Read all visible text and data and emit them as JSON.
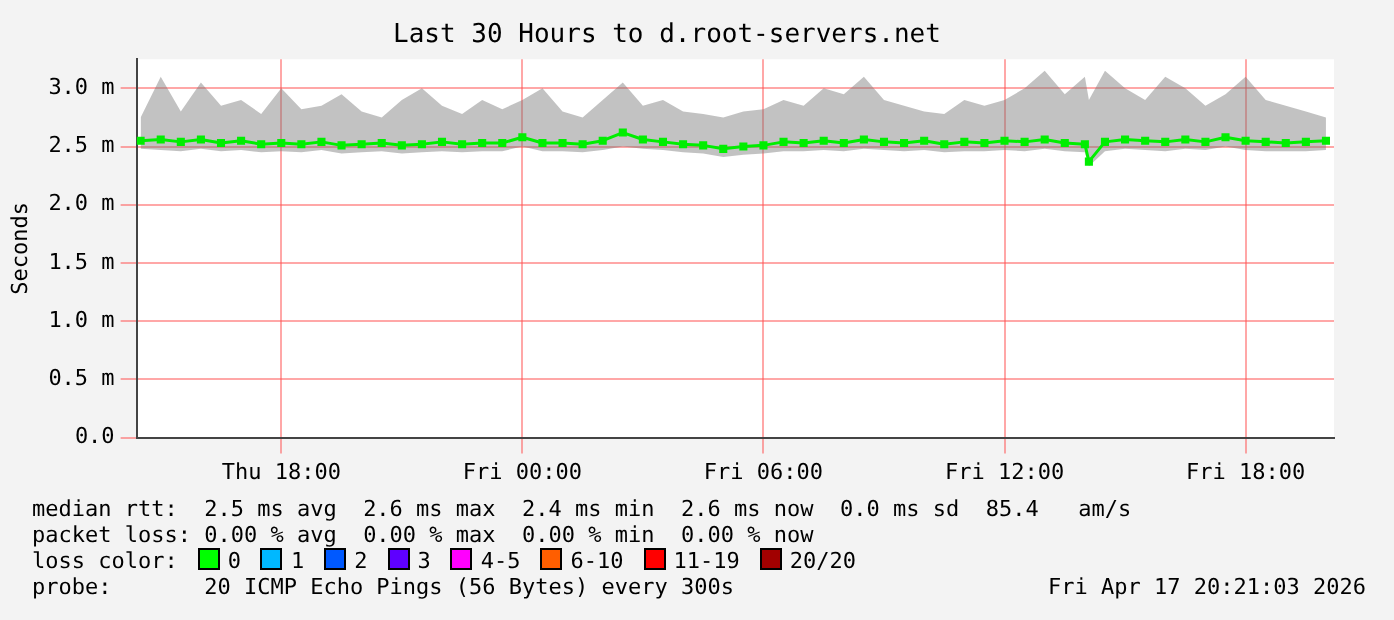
{
  "chart_data": {
    "type": "line",
    "title": "Last 30 Hours to d.root-servers.net",
    "ylabel": "Seconds",
    "x": [
      "2026-04-16T14:30",
      "2026-04-16T15:00",
      "2026-04-16T15:30",
      "2026-04-16T16:00",
      "2026-04-16T16:30",
      "2026-04-16T17:00",
      "2026-04-16T17:30",
      "2026-04-16T18:00",
      "2026-04-16T18:30",
      "2026-04-16T19:00",
      "2026-04-16T19:30",
      "2026-04-16T20:00",
      "2026-04-16T20:30",
      "2026-04-16T21:00",
      "2026-04-16T21:30",
      "2026-04-16T22:00",
      "2026-04-16T22:30",
      "2026-04-16T23:00",
      "2026-04-16T23:30",
      "2026-04-17T00:00",
      "2026-04-17T00:30",
      "2026-04-17T01:00",
      "2026-04-17T01:30",
      "2026-04-17T02:00",
      "2026-04-17T02:30",
      "2026-04-17T03:00",
      "2026-04-17T03:30",
      "2026-04-17T04:00",
      "2026-04-17T04:30",
      "2026-04-17T05:00",
      "2026-04-17T05:30",
      "2026-04-17T06:00",
      "2026-04-17T06:30",
      "2026-04-17T07:00",
      "2026-04-17T07:30",
      "2026-04-17T08:00",
      "2026-04-17T08:30",
      "2026-04-17T09:00",
      "2026-04-17T09:30",
      "2026-04-17T10:00",
      "2026-04-17T10:30",
      "2026-04-17T11:00",
      "2026-04-17T11:30",
      "2026-04-17T12:00",
      "2026-04-17T12:30",
      "2026-04-17T13:00",
      "2026-04-17T13:30",
      "2026-04-17T14:00",
      "2026-04-17T14:06",
      "2026-04-17T14:30",
      "2026-04-17T15:00",
      "2026-04-17T15:30",
      "2026-04-17T16:00",
      "2026-04-17T16:30",
      "2026-04-17T17:00",
      "2026-04-17T17:30",
      "2026-04-17T18:00",
      "2026-04-17T18:30",
      "2026-04-17T19:00",
      "2026-04-17T19:30",
      "2026-04-17T20:00"
    ],
    "series": [
      {
        "color": "#00ee00",
        "values": [
          2.55,
          2.56,
          2.54,
          2.56,
          2.53,
          2.55,
          2.52,
          2.53,
          2.52,
          2.54,
          2.51,
          2.52,
          2.53,
          2.51,
          2.52,
          2.54,
          2.52,
          2.53,
          2.53,
          2.58,
          2.53,
          2.53,
          2.52,
          2.55,
          2.62,
          2.56,
          2.54,
          2.52,
          2.51,
          2.48,
          2.5,
          2.51,
          2.54,
          2.53,
          2.55,
          2.53,
          2.56,
          2.54,
          2.53,
          2.55,
          2.52,
          2.54,
          2.53,
          2.55,
          2.54,
          2.56,
          2.53,
          2.52,
          2.37,
          2.54,
          2.56,
          2.55,
          2.54,
          2.56,
          2.54,
          2.58,
          2.55,
          2.54,
          2.53,
          2.54,
          2.55
        ],
        "lower": [
          2.48,
          2.47,
          2.46,
          2.48,
          2.46,
          2.47,
          2.45,
          2.46,
          2.45,
          2.47,
          2.44,
          2.45,
          2.46,
          2.44,
          2.45,
          2.46,
          2.45,
          2.46,
          2.46,
          2.5,
          2.46,
          2.46,
          2.45,
          2.47,
          2.5,
          2.48,
          2.47,
          2.45,
          2.44,
          2.41,
          2.43,
          2.44,
          2.46,
          2.46,
          2.47,
          2.46,
          2.48,
          2.47,
          2.46,
          2.47,
          2.45,
          2.46,
          2.46,
          2.47,
          2.46,
          2.48,
          2.46,
          2.45,
          2.33,
          2.46,
          2.48,
          2.47,
          2.46,
          2.48,
          2.47,
          2.5,
          2.47,
          2.46,
          2.46,
          2.46,
          2.47
        ],
        "upper": [
          2.75,
          3.1,
          2.8,
          3.05,
          2.85,
          2.9,
          2.78,
          3.0,
          2.82,
          2.85,
          2.95,
          2.8,
          2.75,
          2.9,
          3.0,
          2.85,
          2.78,
          2.9,
          2.82,
          2.9,
          3.0,
          2.8,
          2.75,
          2.9,
          3.05,
          2.85,
          2.9,
          2.8,
          2.78,
          2.75,
          2.8,
          2.82,
          2.9,
          2.85,
          3.0,
          2.95,
          3.1,
          2.9,
          2.85,
          2.8,
          2.78,
          2.9,
          2.85,
          2.9,
          3.0,
          3.15,
          2.95,
          3.1,
          2.9,
          3.15,
          3.0,
          2.9,
          3.1,
          3.0,
          2.85,
          2.95,
          3.1,
          2.9,
          2.85,
          2.8,
          2.75
        ]
      }
    ],
    "xlim": [
      "2026-04-16T14:24",
      "2026-04-17T20:12"
    ],
    "xticks": [
      {
        "value": "2026-04-16T18:00",
        "label": "Thu 18:00"
      },
      {
        "value": "2026-04-17T00:00",
        "label": "Fri 00:00"
      },
      {
        "value": "2026-04-17T06:00",
        "label": "Fri 06:00"
      },
      {
        "value": "2026-04-17T12:00",
        "label": "Fri 12:00"
      },
      {
        "value": "2026-04-17T18:00",
        "label": "Fri 18:00"
      }
    ],
    "ylim": [
      0,
      3.25
    ],
    "yticks": [
      {
        "value": 0,
        "label": "0.0"
      },
      {
        "value": 0.5,
        "label": "0.5 m"
      },
      {
        "value": 1.0,
        "label": "1.0 m"
      },
      {
        "value": 1.5,
        "label": "1.5 m"
      },
      {
        "value": 2.0,
        "label": "2.0 m"
      },
      {
        "value": 2.5,
        "label": "2.5 m"
      },
      {
        "value": 3.0,
        "label": "3.0 m"
      }
    ],
    "grid": true,
    "legend": false,
    "marker": "square",
    "line_style": "solid",
    "annotations": [
      "median rtt:  2.5 ms avg  2.6 ms max  2.4 ms min  2.6 ms now  0.0 ms sd  85.4   am/s",
      "packet loss: 0.00 % avg  0.00 % max  0.00 % min  0.00 % now",
      "loss color:",
      "0",
      "1",
      "2",
      "3",
      "4-5",
      "6-10",
      "11-19",
      "20/20",
      "probe:       20 ICMP Echo Pings (56 Bytes) every 300s",
      "Fri Apr 17 20:21:03 2026"
    ]
  }
}
